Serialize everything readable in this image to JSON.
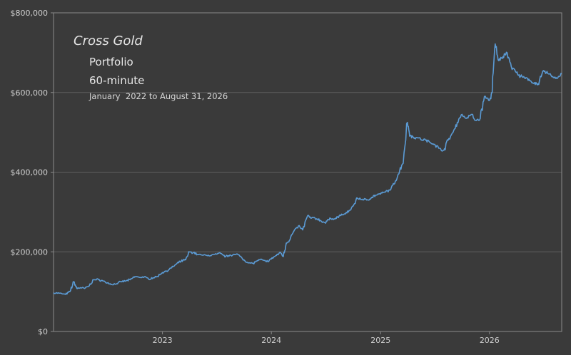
{
  "chart_data": {
    "type": "line",
    "title": "Cross Gold",
    "subtitle": "Portfolio",
    "interval": "60-minute",
    "date_range": "January  2022 to August 31, 2026",
    "xlabel": "",
    "ylabel": "",
    "x_ticks": [
      "2023",
      "2024",
      "2025",
      "2026"
    ],
    "y_ticks": [
      "$0",
      "$200,000",
      "$400,000",
      "$600,000",
      "$800,000"
    ],
    "xlim": [
      "2022-01-01",
      "2026-08-31"
    ],
    "ylim": [
      0,
      800000
    ],
    "grid": "horizontal",
    "colors": {
      "background": "#3a3a3a",
      "line": "#5b9bd5",
      "grid": "#5e5e5e",
      "axis": "#8a8a8a"
    },
    "series": [
      {
        "x": [
          "2022-01-01",
          "2022-01-20",
          "2022-02-10",
          "2022-02-25",
          "2022-03-10",
          "2022-03-20",
          "2022-04-01",
          "2022-04-15",
          "2022-05-01",
          "2022-05-15",
          "2022-06-01",
          "2022-06-15",
          "2022-07-01",
          "2022-07-15",
          "2022-08-01",
          "2022-08-15",
          "2022-09-01",
          "2022-09-15",
          "2022-10-01",
          "2022-10-15",
          "2022-11-01",
          "2022-11-15",
          "2022-12-01",
          "2022-12-15",
          "2023-01-01",
          "2023-01-15",
          "2023-02-01",
          "2023-02-15",
          "2023-03-01",
          "2023-03-10",
          "2023-03-20",
          "2023-04-01",
          "2023-04-15",
          "2023-05-01",
          "2023-06-01",
          "2023-06-15",
          "2023-07-01",
          "2023-07-15",
          "2023-08-01",
          "2023-08-15",
          "2023-09-01",
          "2023-09-15",
          "2023-10-01",
          "2023-10-15",
          "2023-11-01",
          "2023-11-15",
          "2023-12-01",
          "2023-12-15",
          "2024-01-01",
          "2024-01-15",
          "2024-02-01",
          "2024-02-10",
          "2024-02-20",
          "2024-03-01",
          "2024-03-15",
          "2024-04-01",
          "2024-04-15",
          "2024-05-01",
          "2024-05-15",
          "2024-06-01",
          "2024-06-15",
          "2024-07-01",
          "2024-07-15",
          "2024-08-01",
          "2024-08-15",
          "2024-09-01",
          "2024-09-15",
          "2024-10-01",
          "2024-10-15",
          "2024-11-01",
          "2024-11-15",
          "2024-12-01",
          "2024-12-15",
          "2025-01-01",
          "2025-01-15",
          "2025-02-01",
          "2025-02-15",
          "2025-03-01",
          "2025-03-15",
          "2025-04-01",
          "2025-04-10",
          "2025-04-20",
          "2025-05-01",
          "2025-05-15",
          "2025-06-01",
          "2025-06-15",
          "2025-07-01",
          "2025-07-15",
          "2025-08-01",
          "2025-08-15",
          "2025-09-01",
          "2025-09-15",
          "2025-10-01",
          "2025-10-15",
          "2025-11-01",
          "2025-11-15",
          "2025-12-01",
          "2025-12-15",
          "2026-01-01",
          "2026-01-10",
          "2026-01-20",
          "2026-02-01",
          "2026-02-15",
          "2026-03-01",
          "2026-03-15",
          "2026-04-01",
          "2026-04-15",
          "2026-05-01",
          "2026-05-15",
          "2026-06-01",
          "2026-06-15",
          "2026-07-01",
          "2026-07-15",
          "2026-08-01",
          "2026-08-15",
          "2026-08-31"
        ],
        "y": [
          97000,
          96000,
          93000,
          100000,
          125000,
          108000,
          110000,
          108000,
          115000,
          130000,
          130000,
          127000,
          122000,
          118000,
          120000,
          125000,
          127000,
          130000,
          138000,
          136000,
          137000,
          132000,
          135000,
          138000,
          148000,
          152000,
          160000,
          168000,
          175000,
          178000,
          180000,
          200000,
          198000,
          193000,
          190000,
          192000,
          194000,
          196000,
          188000,
          192000,
          193000,
          192000,
          180000,
          172000,
          171000,
          178000,
          180000,
          175000,
          182000,
          190000,
          198000,
          188000,
          222000,
          228000,
          250000,
          265000,
          255000,
          290000,
          285000,
          283000,
          278000,
          272000,
          285000,
          282000,
          290000,
          295000,
          300000,
          315000,
          335000,
          332000,
          330000,
          336000,
          342000,
          345000,
          350000,
          355000,
          370000,
          395000,
          420000,
          525000,
          492000,
          488000,
          487000,
          483000,
          480000,
          475000,
          470000,
          460000,
          455000,
          480000,
          500000,
          525000,
          545000,
          535000,
          545000,
          530000,
          535000,
          590000,
          580000,
          600000,
          722000,
          680000,
          690000,
          700000,
          665000,
          650000,
          640000,
          635000,
          630000,
          625000,
          620000,
          655000,
          648000,
          640000,
          635000,
          648000
        ]
      }
    ]
  }
}
